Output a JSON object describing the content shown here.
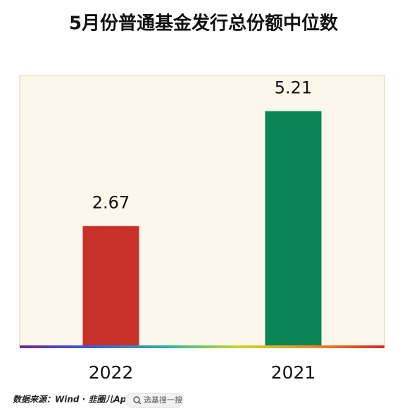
{
  "chart_data": {
    "type": "bar",
    "title": "5月份普通基金发行总份额中位数",
    "categories": [
      "2022",
      "2021"
    ],
    "values": [
      2.67,
      5.21
    ],
    "colors": [
      "#c8302a",
      "#0b8457"
    ],
    "ylim": [
      0,
      6
    ]
  },
  "footer": {
    "source": "数据来源：Wind · 韭圈儿App",
    "search": "选基搜一搜"
  }
}
